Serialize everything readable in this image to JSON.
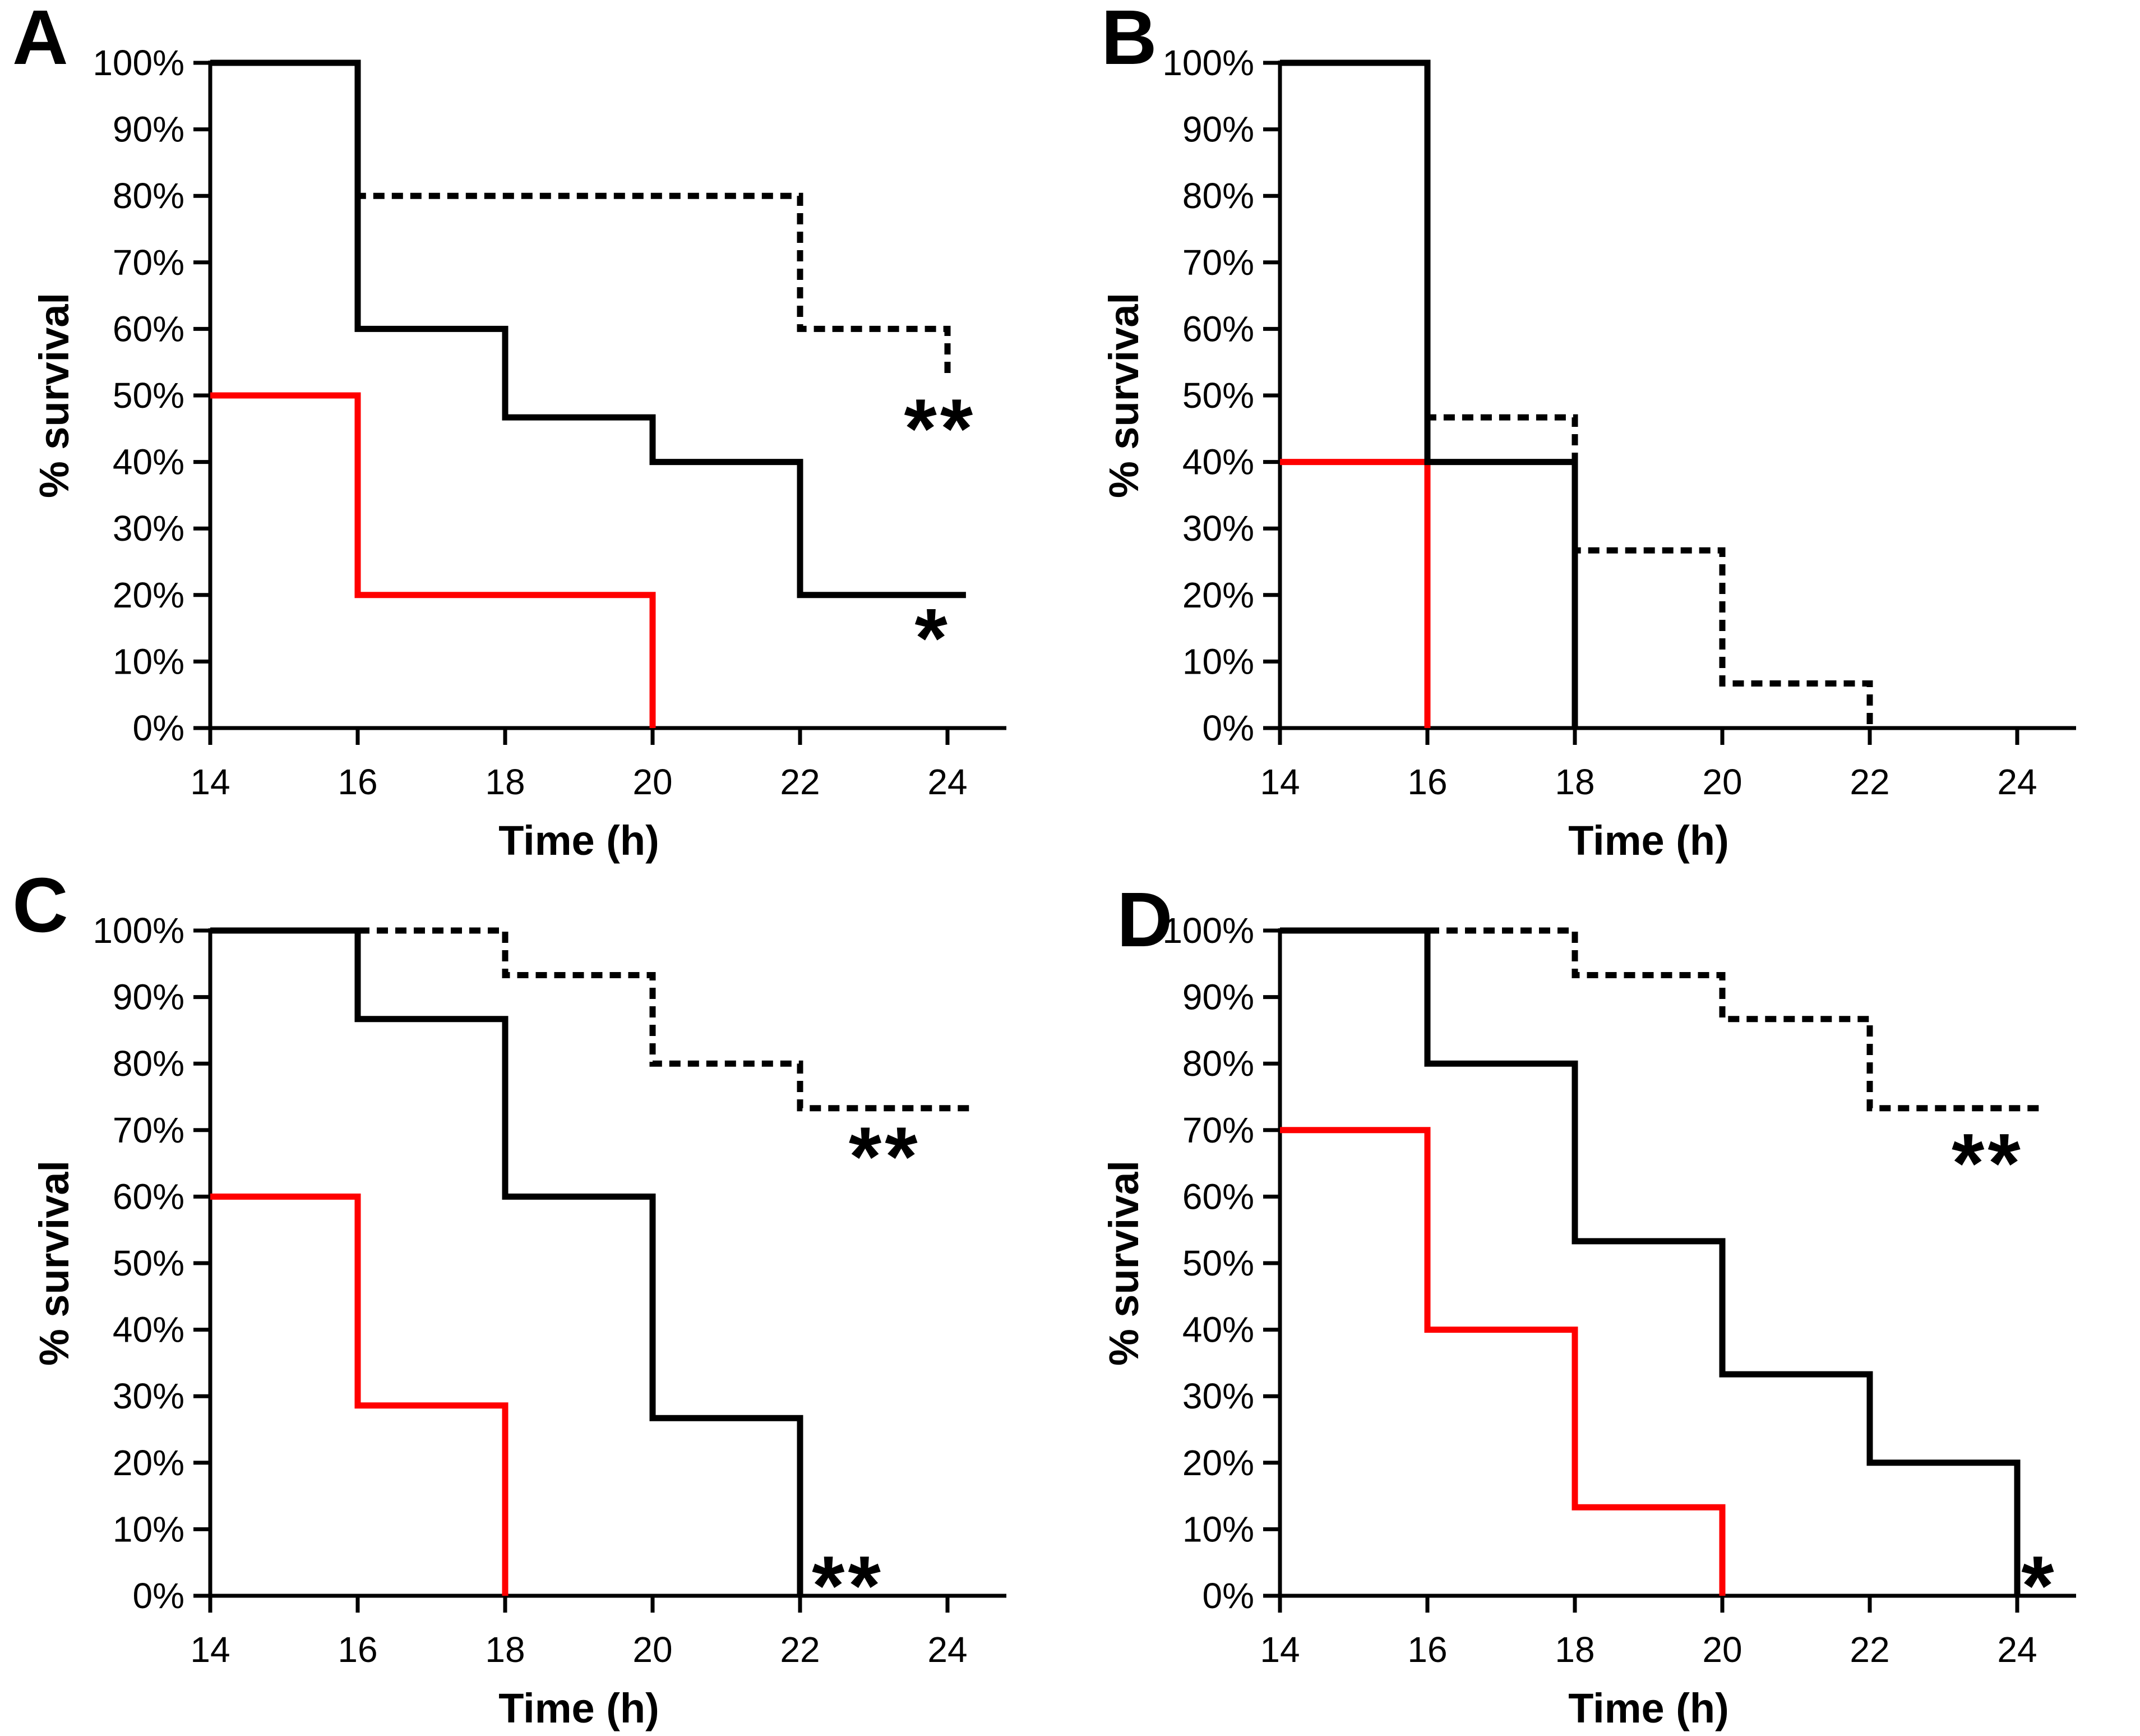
{
  "colors": {
    "red": "#ff0000",
    "black": "#000000",
    "background": "#ffffff"
  },
  "chart_data": [
    {
      "panel": "A",
      "type": "line",
      "subtype": "kaplan-meier-step",
      "xlabel": "Time (h)",
      "ylabel": "% survival",
      "xlim": [
        14,
        25
      ],
      "ylim": [
        0,
        100
      ],
      "x_ticks": [
        14,
        16,
        18,
        20,
        22,
        24
      ],
      "y_tick_labels": [
        "0%",
        "10%",
        "20%",
        "30%",
        "40%",
        "50%",
        "60%",
        "70%",
        "80%",
        "90%",
        "100%"
      ],
      "grid": false,
      "legend": "none",
      "series": [
        {
          "name": "red-solid",
          "color": "#ff0000",
          "style": "solid",
          "points": [
            [
              14,
              50
            ],
            [
              16,
              50
            ],
            [
              16,
              20
            ],
            [
              20,
              20
            ],
            [
              20,
              0
            ]
          ]
        },
        {
          "name": "black-dashed",
          "color": "#000000",
          "style": "dashed",
          "points": [
            [
              14,
              100
            ],
            [
              16,
              100
            ],
            [
              16,
              80
            ],
            [
              22,
              80
            ],
            [
              22,
              60
            ],
            [
              24,
              60
            ],
            [
              24,
              53.3
            ]
          ]
        },
        {
          "name": "black-solid",
          "color": "#000000",
          "style": "solid",
          "points": [
            [
              14,
              100
            ],
            [
              16,
              100
            ],
            [
              16,
              60
            ],
            [
              18,
              60
            ],
            [
              18,
              46.7
            ],
            [
              20,
              46.7
            ],
            [
              20,
              40
            ],
            [
              22,
              40
            ],
            [
              22,
              20
            ],
            [
              24.25,
              20
            ]
          ]
        }
      ],
      "annotations": [
        {
          "text": "**",
          "x": 23.9,
          "y": 47
        },
        {
          "text": "*",
          "x": 23.8,
          "y": 15.5
        }
      ]
    },
    {
      "panel": "B",
      "type": "line",
      "subtype": "kaplan-meier-step",
      "xlabel": "Time (h)",
      "ylabel": "% survival",
      "xlim": [
        14,
        25
      ],
      "ylim": [
        0,
        100
      ],
      "x_ticks": [
        14,
        16,
        18,
        20,
        22,
        24
      ],
      "y_tick_labels": [
        "0%",
        "10%",
        "20%",
        "30%",
        "40%",
        "50%",
        "60%",
        "70%",
        "80%",
        "90%",
        "100%"
      ],
      "grid": false,
      "legend": "none",
      "series": [
        {
          "name": "red-solid",
          "color": "#ff0000",
          "style": "solid",
          "points": [
            [
              14,
              40
            ],
            [
              16,
              40
            ],
            [
              16,
              0
            ]
          ]
        },
        {
          "name": "black-dashed",
          "color": "#000000",
          "style": "dashed",
          "points": [
            [
              14,
              100
            ],
            [
              16,
              100
            ],
            [
              16,
              46.7
            ],
            [
              18,
              46.7
            ],
            [
              18,
              26.7
            ],
            [
              20,
              26.7
            ],
            [
              20,
              6.7
            ],
            [
              22,
              6.7
            ],
            [
              22,
              0
            ]
          ]
        },
        {
          "name": "black-solid",
          "color": "#000000",
          "style": "solid",
          "points": [
            [
              14,
              100
            ],
            [
              16,
              100
            ],
            [
              16,
              40
            ],
            [
              18,
              40
            ],
            [
              18,
              0
            ]
          ]
        }
      ],
      "annotations": []
    },
    {
      "panel": "C",
      "type": "line",
      "subtype": "kaplan-meier-step",
      "xlabel": "Time (h)",
      "ylabel": "% survival",
      "xlim": [
        14,
        25
      ],
      "ylim": [
        0,
        100
      ],
      "x_ticks": [
        14,
        16,
        18,
        20,
        22,
        24
      ],
      "y_tick_labels": [
        "0%",
        "10%",
        "20%",
        "30%",
        "40%",
        "50%",
        "60%",
        "70%",
        "80%",
        "90%",
        "100%"
      ],
      "grid": false,
      "legend": "none",
      "series": [
        {
          "name": "red-solid",
          "color": "#ff0000",
          "style": "solid",
          "points": [
            [
              14,
              60
            ],
            [
              16,
              60
            ],
            [
              16,
              28.6
            ],
            [
              18,
              28.6
            ],
            [
              18,
              0
            ]
          ]
        },
        {
          "name": "black-dashed",
          "color": "#000000",
          "style": "dashed",
          "points": [
            [
              14,
              100
            ],
            [
              18,
              100
            ],
            [
              18,
              93.3
            ],
            [
              20,
              93.3
            ],
            [
              20,
              80
            ],
            [
              22,
              80
            ],
            [
              22,
              73.3
            ],
            [
              24.3,
              73.3
            ]
          ]
        },
        {
          "name": "black-solid",
          "color": "#000000",
          "style": "solid",
          "points": [
            [
              14,
              100
            ],
            [
              16,
              100
            ],
            [
              16,
              86.7
            ],
            [
              18,
              86.7
            ],
            [
              18,
              60
            ],
            [
              20,
              60
            ],
            [
              20,
              26.7
            ],
            [
              22,
              26.7
            ],
            [
              22,
              0
            ]
          ]
        }
      ],
      "annotations": [
        {
          "text": "**",
          "x": 23.15,
          "y": 68
        },
        {
          "text": "**",
          "x": 22.65,
          "y": 3.5
        }
      ]
    },
    {
      "panel": "D",
      "type": "line",
      "subtype": "kaplan-meier-step",
      "xlabel": "Time (h)",
      "ylabel": "% survival",
      "xlim": [
        14,
        25
      ],
      "ylim": [
        0,
        100
      ],
      "x_ticks": [
        14,
        16,
        18,
        20,
        22,
        24
      ],
      "y_tick_labels": [
        "0%",
        "10%",
        "20%",
        "30%",
        "40%",
        "50%",
        "60%",
        "70%",
        "80%",
        "90%",
        "100%"
      ],
      "grid": false,
      "legend": "none",
      "series": [
        {
          "name": "red-solid",
          "color": "#ff0000",
          "style": "solid",
          "points": [
            [
              14,
              70
            ],
            [
              16,
              70
            ],
            [
              16,
              40
            ],
            [
              18,
              40
            ],
            [
              18,
              13.3
            ],
            [
              20,
              13.3
            ],
            [
              20,
              0
            ]
          ]
        },
        {
          "name": "black-dashed",
          "color": "#000000",
          "style": "dashed",
          "points": [
            [
              14,
              100
            ],
            [
              18,
              100
            ],
            [
              18,
              93.3
            ],
            [
              20,
              93.3
            ],
            [
              20,
              86.7
            ],
            [
              22,
              86.7
            ],
            [
              22,
              73.3
            ],
            [
              24.35,
              73.3
            ]
          ]
        },
        {
          "name": "black-solid",
          "color": "#000000",
          "style": "solid",
          "points": [
            [
              14,
              100
            ],
            [
              16,
              100
            ],
            [
              16,
              80
            ],
            [
              18,
              80
            ],
            [
              18,
              53.3
            ],
            [
              20,
              53.3
            ],
            [
              20,
              33.3
            ],
            [
              22,
              33.3
            ],
            [
              22,
              20
            ],
            [
              24,
              20
            ],
            [
              24,
              0
            ]
          ]
        }
      ],
      "annotations": [
        {
          "text": "**",
          "x": 23.6,
          "y": 67
        },
        {
          "text": "*",
          "x": 24.3,
          "y": 3.5
        }
      ]
    }
  ]
}
